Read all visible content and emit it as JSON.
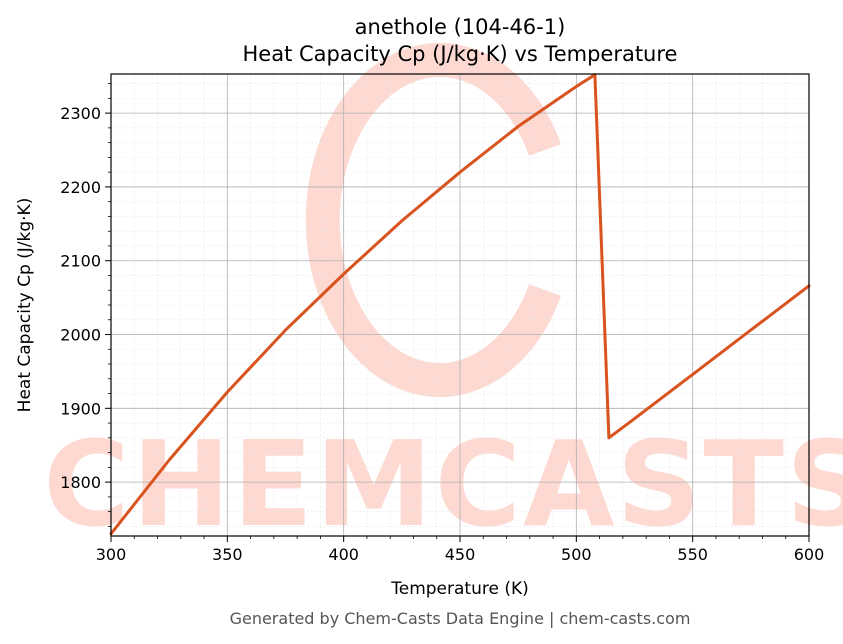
{
  "chart_data": {
    "type": "line",
    "title": "anethole (104-46-1)",
    "subtitle": "Heat Capacity Cp (J/kg·K) vs Temperature",
    "xlabel": "Temperature (K)",
    "ylabel": "Heat Capacity Cp (J/kg·K)",
    "xlim": [
      300,
      600
    ],
    "ylim": [
      1727,
      2353
    ],
    "xticks": [
      300,
      350,
      400,
      450,
      500,
      550,
      600
    ],
    "yticks": [
      1800,
      1900,
      2000,
      2100,
      2200,
      2300
    ],
    "grid": true,
    "minor_grid": true,
    "line_color": "#d9531e",
    "series": [
      {
        "x": [
          300,
          325,
          350,
          375,
          400,
          425,
          450,
          475,
          500,
          508,
          514,
          525,
          550,
          575,
          600
        ],
        "values": [
          1730,
          1830,
          1922,
          2006,
          2082,
          2154,
          2220,
          2282,
          2336,
          2352,
          1860,
          1886,
          1946,
          2006,
          2066
        ]
      }
    ]
  },
  "watermark": {
    "text": "CHEMCASTS",
    "color": "#fdd9d1"
  },
  "footer": "Generated by Chem-Casts Data Engine | chem-casts.com"
}
